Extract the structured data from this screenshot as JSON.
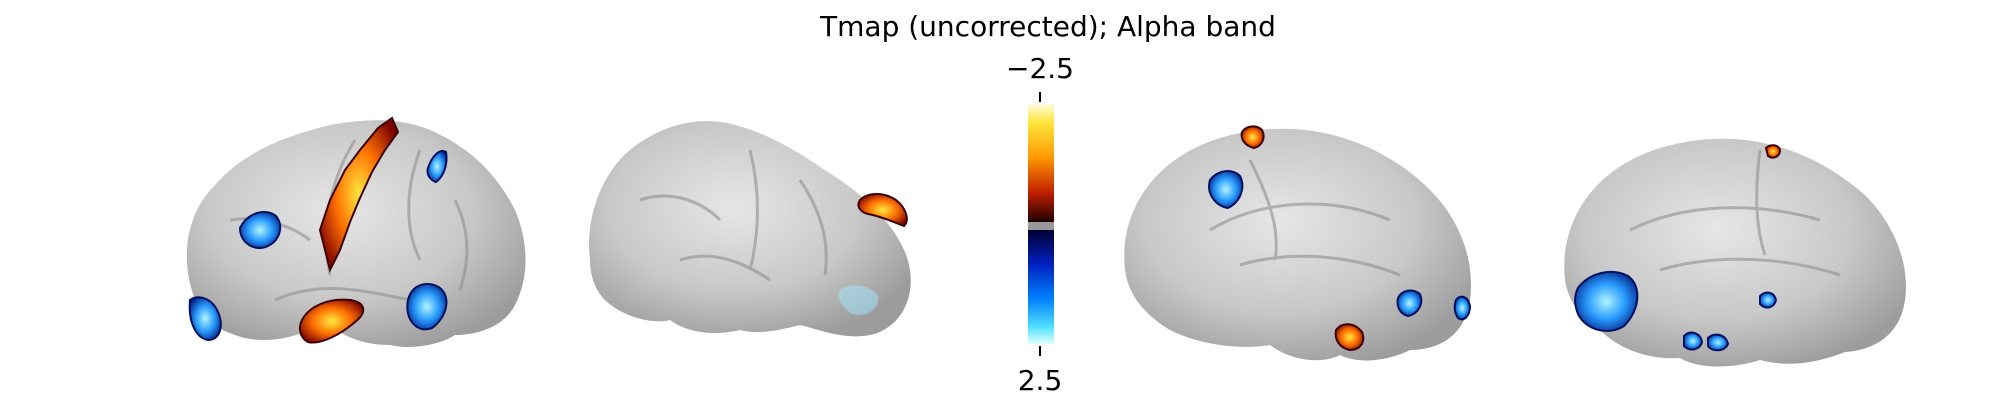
{
  "figure": {
    "title": "Tmap (uncorrected); Alpha band",
    "colorbar": {
      "top_label": "−2.5",
      "bottom_label": "2.5",
      "colormap_warm": [
        "#fffbe0",
        "#ffe840",
        "#ffa000",
        "#e04000",
        "#600000",
        "#200000"
      ],
      "colormap_cold": [
        "#000030",
        "#001090",
        "#0050ff",
        "#00b0ff",
        "#60ecff",
        "#e0ffff"
      ],
      "midpoint_color": "#999999"
    },
    "views": [
      {
        "name": "left-lateral"
      },
      {
        "name": "right-lateral"
      },
      {
        "name": "left-medial"
      },
      {
        "name": "right-medial"
      }
    ],
    "colors": {
      "cortex": "#cfcfcf",
      "cortex_dark": "#9a9a9a",
      "hot": "#ff6a00",
      "hot_dark": "#8a0a00",
      "cold": "#1f8fff",
      "cold_light": "#9fefff",
      "cold_dark": "#001a80"
    }
  }
}
